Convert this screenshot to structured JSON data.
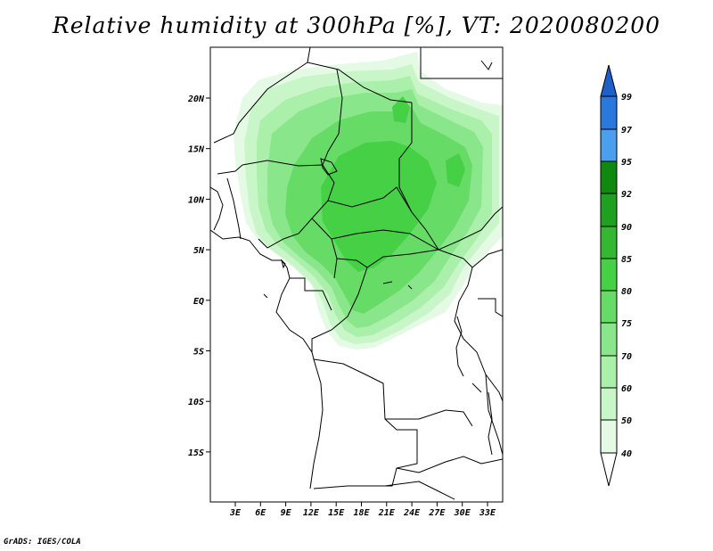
{
  "title": "Relative humidity at 300hPa [%], VT: 2020080200",
  "credit": "GrADS: IGES/COLA",
  "map": {
    "lat_ticks": [
      "20N",
      "15N",
      "10N",
      "5N",
      "EQ",
      "5S",
      "10S",
      "15S"
    ],
    "lon_ticks": [
      "3E",
      "6E",
      "9E",
      "12E",
      "15E",
      "18E",
      "21E",
      "24E",
      "27E",
      "30E",
      "33E"
    ]
  },
  "colorbar": {
    "labels": [
      "99",
      "97",
      "95",
      "92",
      "90",
      "85",
      "80",
      "75",
      "70",
      "60",
      "50",
      "40"
    ],
    "colors": {
      "above_99": "#1f5fc8",
      "97_99": "#2a78dc",
      "95_97": "#4aa0ec",
      "92_95": "#0f8a0f",
      "90_92": "#1fa01f",
      "85_90": "#34b834",
      "80_85": "#46d046",
      "75_80": "#66dc66",
      "70_75": "#8ae68a",
      "60_70": "#aaf0aa",
      "50_60": "#c8f6c8",
      "40_50": "#e4fae4",
      "below_40": "#ffffff"
    }
  }
}
